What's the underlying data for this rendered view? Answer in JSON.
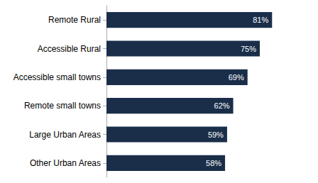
{
  "chart_data": {
    "type": "bar",
    "orientation": "horizontal",
    "categories": [
      "Remote Rural",
      "Accessible Rural",
      "Accessible small towns",
      "Remote small towns",
      "Large Urban Areas",
      "Other Urban Areas"
    ],
    "values": [
      81,
      75,
      69,
      62,
      59,
      58
    ],
    "value_labels": [
      "81%",
      "75%",
      "69%",
      "62%",
      "59%",
      "58%"
    ],
    "color": "#1a2e4a",
    "xlim": [
      0,
      100
    ],
    "data_labels": true,
    "tick_labels": "y",
    "grid": false
  }
}
